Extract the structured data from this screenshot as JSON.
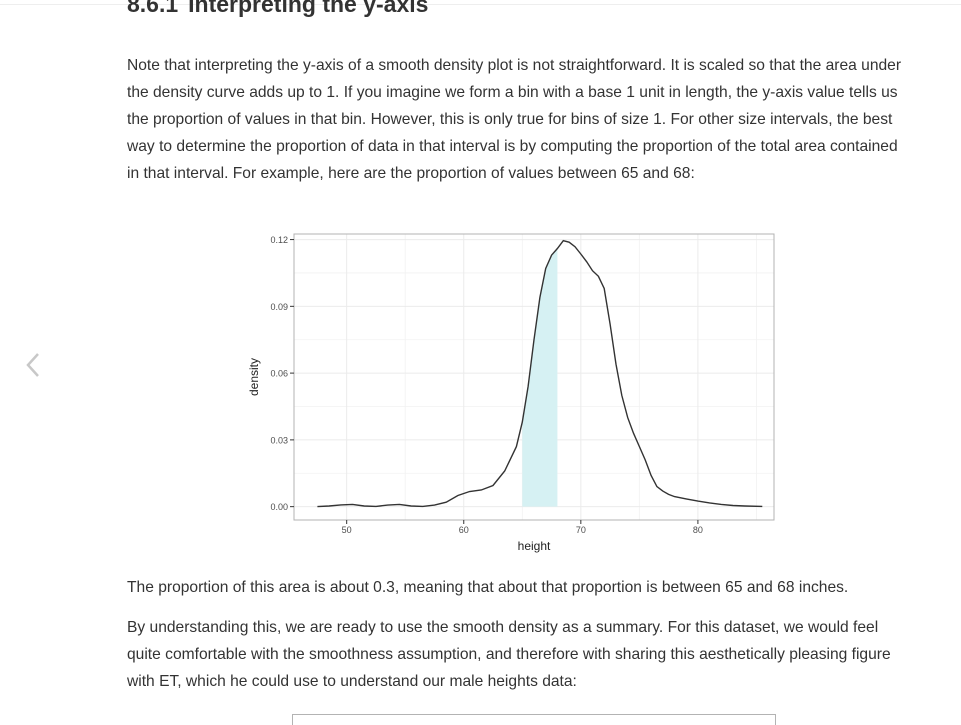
{
  "section": {
    "number": "8.6.1",
    "title": "Interpreting the y-axis"
  },
  "paragraphs": {
    "intro": "Note that interpreting the y-axis of a smooth density plot is not straightforward. It is scaled so that the area under the density curve adds up to 1. If you imagine we form a bin with a base 1 unit in length, the y-axis value tells us the proportion of values in that bin. However, this is only true for bins of size 1. For other size intervals, the best way to determine the proportion of data in that interval is by computing the proportion of the total area contained in that interval. For example, here are the proportion of values between 65 and 68:",
    "proportion": "The proportion of this area is about 0.3, meaning that about that proportion is between 65 and 68 inches.",
    "summary": "By understanding this, we are ready to use the smooth density as a summary. For this dataset, we would feel quite comfortable with the smoothness assumption, and therefore with sharing this aesthetically pleasing figure with ET, which he could use to understand our male heights data:"
  },
  "nav": {
    "prev_icon": "chevron-left-icon"
  },
  "chart_data": {
    "type": "area",
    "xlabel": "height",
    "ylabel": "density",
    "xlim": [
      45.5,
      86.5
    ],
    "ylim": [
      -0.006,
      0.1225
    ],
    "x_ticks": [
      50,
      60,
      70,
      80
    ],
    "x_tick_labels": [
      "50",
      "60",
      "70",
      "80"
    ],
    "y_ticks": [
      0,
      0.03,
      0.06,
      0.09,
      0.12
    ],
    "y_tick_labels": [
      "0.00",
      "0.03",
      "0.06",
      "0.09",
      "0.12"
    ],
    "grid": true,
    "line_color": "#333333",
    "shade_color": "#d6f1f3",
    "shaded_interval": [
      65,
      68
    ],
    "x": [
      47.5,
      48.5,
      49.5,
      50.5,
      51.5,
      52.5,
      53.5,
      54.5,
      55.5,
      56.5,
      57.5,
      58.5,
      59.5,
      60.5,
      61.5,
      62.5,
      63.5,
      64.5,
      65,
      65.5,
      66,
      66.5,
      67,
      67.5,
      68,
      68.5,
      69,
      69.5,
      70,
      70.5,
      71,
      71.5,
      72,
      72.5,
      73,
      73.5,
      74,
      74.5,
      75,
      75.5,
      76,
      76.5,
      77,
      77.5,
      78,
      79,
      80,
      81,
      82,
      83,
      84,
      85.5
    ],
    "y": [
      0.0,
      0.0003,
      0.0008,
      0.001,
      0.0003,
      0.0001,
      0.0007,
      0.001,
      0.0003,
      0.0001,
      0.0007,
      0.002,
      0.005,
      0.0068,
      0.0075,
      0.0095,
      0.016,
      0.027,
      0.038,
      0.054,
      0.075,
      0.094,
      0.107,
      0.113,
      0.116,
      0.1195,
      0.1188,
      0.1168,
      0.1135,
      0.11,
      0.106,
      0.1035,
      0.098,
      0.082,
      0.064,
      0.05,
      0.04,
      0.033,
      0.027,
      0.021,
      0.014,
      0.009,
      0.007,
      0.0055,
      0.0045,
      0.0035,
      0.0025,
      0.0017,
      0.001,
      0.0005,
      0.0003,
      0.0001
    ]
  }
}
